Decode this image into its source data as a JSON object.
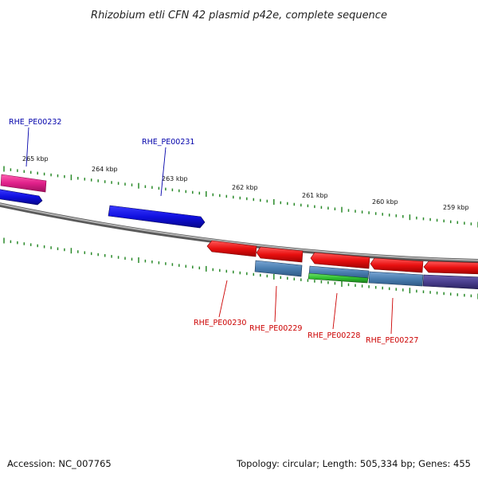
{
  "title": "Rhizobium etli CFN 42 plasmid p42e, complete sequence",
  "accession": "Accession: NC_007765",
  "summary": "Topology: circular; Length: 505,334 bp; Genes: 455",
  "scale_labels": [
    "265 kbp",
    "264 kbp",
    "263 kbp",
    "262 kbp",
    "261 kbp",
    "260 kbp",
    "259 kbp"
  ],
  "genes": {
    "plus": [
      {
        "label": "RHE_PE00232",
        "color": "#000099"
      },
      {
        "label": "RHE_PE00231",
        "color": "#000099"
      }
    ],
    "minus": [
      {
        "label": "RHE_PE00230",
        "color": "#cc0000"
      },
      {
        "label": "RHE_PE00229",
        "color": "#cc0000"
      },
      {
        "label": "RHE_PE00228",
        "color": "#cc0000"
      },
      {
        "label": "RHE_PE00227",
        "color": "#cc0000"
      }
    ]
  },
  "colors": {
    "backbone": "#8a8a8a",
    "ticks": "#2a8a2a",
    "plus_gene": "#1010e0",
    "pink_feature": "#e0208a",
    "minus_gene": "#e81010",
    "steelblue_feature": "#4a7eb0",
    "green_feature": "#30c030",
    "purple_feature": "#4a3f8f"
  }
}
